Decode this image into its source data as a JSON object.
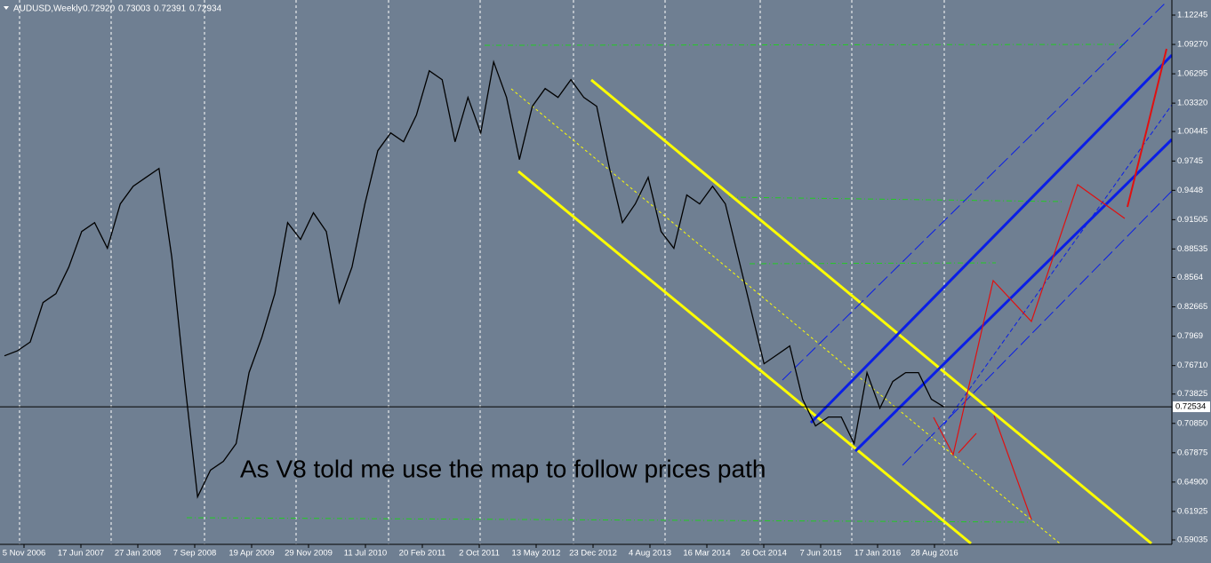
{
  "chart_data": {
    "type": "line",
    "title": "AUDUSD,Weekly",
    "quote_labels": [
      "0.72920",
      "0.73003",
      "0.72391",
      "0.72934"
    ],
    "annotation": "As V8 told me use the map to follow prices path",
    "x_labels": [
      "5 Nov 2006",
      "17 Jun 2007",
      "27 Jan 2008",
      "7 Sep 2008",
      "19 Apr 2009",
      "29 Nov 2009",
      "11 Jul 2010",
      "20 Feb 2011",
      "2 Oct 2011",
      "13 May 2012",
      "23 Dec 2012",
      "4 Aug 2013",
      "16 Mar 2014",
      "26 Oct 2014",
      "7 Jun 2015",
      "17 Jan 2016",
      "28 Aug 2016"
    ],
    "values": [
      0.777,
      0.782,
      0.791,
      0.831,
      0.84,
      0.867,
      0.903,
      0.912,
      0.886,
      0.931,
      0.949,
      0.958,
      0.967,
      0.877,
      0.751,
      0.634,
      0.661,
      0.67,
      0.688,
      0.76,
      0.796,
      0.84,
      0.912,
      0.895,
      0.922,
      0.903,
      0.831,
      0.867,
      0.931,
      0.985,
      1.003,
      0.994,
      1.021,
      1.066,
      1.057,
      0.994,
      1.039,
      1.003,
      1.075,
      1.039,
      0.976,
      1.03,
      1.048,
      1.039,
      1.057,
      1.039,
      1.03,
      0.967,
      0.912,
      0.931,
      0.958,
      0.903,
      0.886,
      0.94,
      0.931,
      0.949,
      0.931,
      0.877,
      0.823,
      0.769,
      0.778,
      0.787,
      0.733,
      0.706,
      0.715,
      0.715,
      0.688,
      0.76,
      0.724,
      0.751,
      0.76,
      0.76,
      0.733,
      0.725
    ],
    "color": "#000000",
    "current_price": 0.72534,
    "ylim": [
      0.58585,
      1.13776
    ],
    "yticks": [
      1.12245,
      {
        "value": 1.0927,
        "label": "1.09270"
      },
      1.06295,
      {
        "value": 1.0332,
        "label": "1.03320"
      },
      1.00445,
      0.9745,
      0.9448,
      0.91505,
      0.88535,
      0.8564,
      0.82665,
      0.7969,
      {
        "value": 0.7671,
        "label": "0.76710"
      },
      0.73825,
      {
        "value": 0.7085,
        "label": "0.70850"
      },
      0.67875,
      {
        "value": 0.649,
        "label": "0.64900"
      },
      0.61925,
      0.59035
    ]
  }
}
